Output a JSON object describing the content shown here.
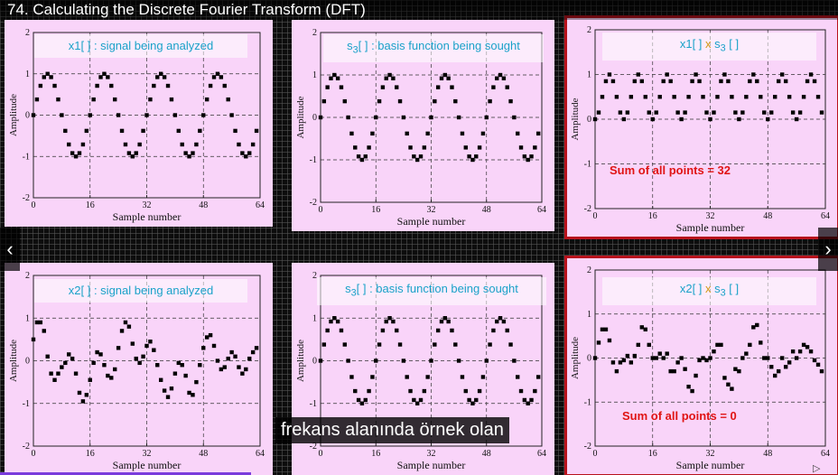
{
  "title": "74. Calculating the Discrete Fourier Transform (DFT)",
  "subtitle": "frekans alanında örnek olan",
  "nav": {
    "prev": "‹",
    "next": "›"
  },
  "progress": 0.3,
  "colors": {
    "panel_bg": "#f9d4f9",
    "caption_cyan": "#1aa2c9",
    "multiply_x": "#d39a18",
    "sum_red": "#e01414",
    "highlight": "#b8121c"
  },
  "chart_data": [
    {
      "type": "scatter",
      "caption": {
        "pre": "x1[ ] : signal being analyzed"
      },
      "xlabel": "Sample number",
      "ylabel": "Amplitude",
      "xlim": [
        0,
        64
      ],
      "ylim": [
        -2,
        2
      ],
      "xticks": [
        "0",
        "16",
        "32",
        "48",
        "64"
      ],
      "yticks": [
        "-2",
        "-1",
        "0",
        "1",
        "2"
      ],
      "grid": "dashed",
      "x": [
        0,
        1,
        2,
        3,
        4,
        5,
        6,
        7,
        8,
        9,
        10,
        11,
        12,
        13,
        14,
        15,
        16,
        17,
        18,
        19,
        20,
        21,
        22,
        23,
        24,
        25,
        26,
        27,
        28,
        29,
        30,
        31,
        32,
        33,
        34,
        35,
        36,
        37,
        38,
        39,
        40,
        41,
        42,
        43,
        44,
        45,
        46,
        47,
        48,
        49,
        50,
        51,
        52,
        53,
        54,
        55,
        56,
        57,
        58,
        59,
        60,
        61,
        62,
        63
      ],
      "y": [
        0,
        0.38,
        0.71,
        0.92,
        1,
        0.92,
        0.71,
        0.38,
        0,
        -0.38,
        -0.71,
        -0.92,
        -1,
        -0.92,
        -0.71,
        -0.38,
        0,
        0.38,
        0.71,
        0.92,
        1,
        0.92,
        0.71,
        0.38,
        0,
        -0.38,
        -0.71,
        -0.92,
        -1,
        -0.92,
        -0.71,
        -0.38,
        0,
        0.38,
        0.71,
        0.92,
        1,
        0.92,
        0.71,
        0.38,
        0,
        -0.38,
        -0.71,
        -0.92,
        -1,
        -0.92,
        -0.71,
        -0.38,
        0,
        0.38,
        0.71,
        0.92,
        1,
        0.92,
        0.71,
        0.38,
        0,
        -0.38,
        -0.71,
        -0.92,
        -1,
        -0.92,
        -0.71,
        -0.38
      ]
    },
    {
      "type": "scatter",
      "caption": {
        "pre": "s",
        "sub": "3",
        "post": "[ ] : basis function being sought"
      },
      "xlabel": "Sample number",
      "ylabel": "Amplitude",
      "xlim": [
        0,
        64
      ],
      "ylim": [
        -2,
        2
      ],
      "xticks": [
        "0",
        "16",
        "32",
        "48",
        "64"
      ],
      "yticks": [
        "-2",
        "-1",
        "0",
        "1",
        "2"
      ],
      "grid": "dashed",
      "x": [
        0,
        1,
        2,
        3,
        4,
        5,
        6,
        7,
        8,
        9,
        10,
        11,
        12,
        13,
        14,
        15,
        16,
        17,
        18,
        19,
        20,
        21,
        22,
        23,
        24,
        25,
        26,
        27,
        28,
        29,
        30,
        31,
        32,
        33,
        34,
        35,
        36,
        37,
        38,
        39,
        40,
        41,
        42,
        43,
        44,
        45,
        46,
        47,
        48,
        49,
        50,
        51,
        52,
        53,
        54,
        55,
        56,
        57,
        58,
        59,
        60,
        61,
        62,
        63
      ],
      "y": [
        0,
        0.38,
        0.71,
        0.92,
        1,
        0.92,
        0.71,
        0.38,
        0,
        -0.38,
        -0.71,
        -0.92,
        -1,
        -0.92,
        -0.71,
        -0.38,
        0,
        0.38,
        0.71,
        0.92,
        1,
        0.92,
        0.71,
        0.38,
        0,
        -0.38,
        -0.71,
        -0.92,
        -1,
        -0.92,
        -0.71,
        -0.38,
        0,
        0.38,
        0.71,
        0.92,
        1,
        0.92,
        0.71,
        0.38,
        0,
        -0.38,
        -0.71,
        -0.92,
        -1,
        -0.92,
        -0.71,
        -0.38,
        0,
        0.38,
        0.71,
        0.92,
        1,
        0.92,
        0.71,
        0.38,
        0,
        -0.38,
        -0.71,
        -0.92,
        -1,
        -0.92,
        -0.71,
        -0.38
      ]
    },
    {
      "type": "scatter",
      "caption": {
        "pre": "x1[ ] ",
        "mul": "x",
        "post2": " s",
        "sub2": "3",
        "post3": " [ ]"
      },
      "sum_text": "Sum of all points  = 32",
      "xlabel": "Sample number",
      "ylabel": "Amplitude",
      "xlim": [
        0,
        64
      ],
      "ylim": [
        -2,
        2
      ],
      "xticks": [
        "0",
        "16",
        "32",
        "48",
        "64"
      ],
      "yticks": [
        "-2",
        "-1",
        "0",
        "1",
        "2"
      ],
      "grid": "dashed",
      "x": [
        0,
        1,
        2,
        3,
        4,
        5,
        6,
        7,
        8,
        9,
        10,
        11,
        12,
        13,
        14,
        15,
        16,
        17,
        18,
        19,
        20,
        21,
        22,
        23,
        24,
        25,
        26,
        27,
        28,
        29,
        30,
        31,
        32,
        33,
        34,
        35,
        36,
        37,
        38,
        39,
        40,
        41,
        42,
        43,
        44,
        45,
        46,
        47,
        48,
        49,
        50,
        51,
        52,
        53,
        54,
        55,
        56,
        57,
        58,
        59,
        60,
        61,
        62,
        63
      ],
      "y": [
        0,
        0.15,
        0.5,
        0.85,
        1,
        0.85,
        0.5,
        0.15,
        0,
        0.15,
        0.5,
        0.85,
        1,
        0.85,
        0.5,
        0.15,
        0,
        0.15,
        0.5,
        0.85,
        1,
        0.85,
        0.5,
        0.15,
        0,
        0.15,
        0.5,
        0.85,
        1,
        0.85,
        0.5,
        0.15,
        0,
        0.15,
        0.5,
        0.85,
        1,
        0.85,
        0.5,
        0.15,
        0,
        0.15,
        0.5,
        0.85,
        1,
        0.85,
        0.5,
        0.15,
        0,
        0.15,
        0.5,
        0.85,
        1,
        0.85,
        0.5,
        0.15,
        0,
        0.15,
        0.5,
        0.85,
        1,
        0.85,
        0.5,
        0.15
      ]
    },
    {
      "type": "scatter",
      "caption": {
        "pre": "x2[ ] : signal being analyzed"
      },
      "xlabel": "Sample number",
      "ylabel": "Amplitude",
      "xlim": [
        0,
        64
      ],
      "ylim": [
        -2,
        2
      ],
      "xticks": [
        "0",
        "16",
        "32",
        "48",
        "64"
      ],
      "yticks": [
        "-2",
        "-1",
        "0",
        "1",
        "2"
      ],
      "grid": "dashed",
      "x": [
        0,
        1,
        2,
        3,
        4,
        5,
        6,
        7,
        8,
        9,
        10,
        11,
        12,
        13,
        14,
        15,
        16,
        17,
        18,
        19,
        20,
        21,
        22,
        23,
        24,
        25,
        26,
        27,
        28,
        29,
        30,
        31,
        32,
        33,
        34,
        35,
        36,
        37,
        38,
        39,
        40,
        41,
        42,
        43,
        44,
        45,
        46,
        47,
        48,
        49,
        50,
        51,
        52,
        53,
        54,
        55,
        56,
        57,
        58,
        59,
        60,
        61,
        62,
        63
      ],
      "y": [
        0.5,
        0.9,
        0.9,
        0.7,
        0.1,
        -0.3,
        -0.45,
        -0.3,
        -0.15,
        -0.05,
        0.15,
        0.05,
        -0.3,
        -0.75,
        -0.95,
        -0.8,
        -0.45,
        -0.05,
        0.2,
        0.15,
        -0.1,
        -0.35,
        -0.4,
        -0.2,
        0.3,
        0.7,
        0.9,
        0.8,
        0.4,
        0.05,
        -0.05,
        0.1,
        0.35,
        0.45,
        0.25,
        -0.1,
        -0.45,
        -0.7,
        -0.85,
        -0.65,
        -0.3,
        -0.05,
        -0.1,
        -0.35,
        -0.75,
        -0.8,
        -0.5,
        -0.1,
        0.3,
        0.55,
        0.6,
        0.35,
        0,
        -0.2,
        -0.15,
        0.05,
        0.2,
        0.1,
        -0.15,
        -0.3,
        -0.2,
        0.05,
        0.2,
        0.3
      ]
    },
    {
      "type": "scatter",
      "caption": {
        "pre": "s",
        "sub": "3",
        "post": "[ ] : basis function being sought"
      },
      "xlabel": "Sample number",
      "ylabel": "Amplitude",
      "xlim": [
        0,
        64
      ],
      "ylim": [
        -2,
        2
      ],
      "xticks": [
        "0",
        "16",
        "32",
        "48",
        "64"
      ],
      "yticks": [
        "-2",
        "-1",
        "0",
        "1",
        "2"
      ],
      "grid": "dashed",
      "x": [
        0,
        1,
        2,
        3,
        4,
        5,
        6,
        7,
        8,
        9,
        10,
        11,
        12,
        13,
        14,
        15,
        16,
        17,
        18,
        19,
        20,
        21,
        22,
        23,
        24,
        25,
        26,
        27,
        28,
        29,
        30,
        31,
        32,
        33,
        34,
        35,
        36,
        37,
        38,
        39,
        40,
        41,
        42,
        43,
        44,
        45,
        46,
        47,
        48,
        49,
        50,
        51,
        52,
        53,
        54,
        55,
        56,
        57,
        58,
        59,
        60,
        61,
        62,
        63
      ],
      "y": [
        0,
        0.38,
        0.71,
        0.92,
        1,
        0.92,
        0.71,
        0.38,
        0,
        -0.38,
        -0.71,
        -0.92,
        -1,
        -0.92,
        -0.71,
        -0.38,
        0,
        0.38,
        0.71,
        0.92,
        1,
        0.92,
        0.71,
        0.38,
        0,
        -0.38,
        -0.71,
        -0.92,
        -1,
        -0.92,
        -0.71,
        -0.38,
        0,
        0.38,
        0.71,
        0.92,
        1,
        0.92,
        0.71,
        0.38,
        0,
        -0.38,
        -0.71,
        -0.92,
        -1,
        -0.92,
        -0.71,
        -0.38,
        0,
        0.38,
        0.71,
        0.92,
        1,
        0.92,
        0.71,
        0.38,
        0,
        -0.38,
        -0.71,
        -0.92,
        -1,
        -0.92,
        -0.71,
        -0.38
      ]
    },
    {
      "type": "scatter",
      "caption": {
        "pre": "x2[ ] ",
        "mul": "x",
        "post2": " s",
        "sub2": "3",
        "post3": " [ ]"
      },
      "sum_text": "Sum of all points  = 0",
      "xlabel": "Sample number",
      "ylabel": "Amplitude",
      "xlim": [
        0,
        64
      ],
      "ylim": [
        -2,
        2
      ],
      "xticks": [
        "0",
        "16",
        "32",
        "48",
        "64"
      ],
      "yticks": [
        "-2",
        "-1",
        "0",
        "1",
        "2"
      ],
      "grid": "dashed",
      "x": [
        0,
        1,
        2,
        3,
        4,
        5,
        6,
        7,
        8,
        9,
        10,
        11,
        12,
        13,
        14,
        15,
        16,
        17,
        18,
        19,
        20,
        21,
        22,
        23,
        24,
        25,
        26,
        27,
        28,
        29,
        30,
        31,
        32,
        33,
        34,
        35,
        36,
        37,
        38,
        39,
        40,
        41,
        42,
        43,
        44,
        45,
        46,
        47,
        48,
        49,
        50,
        51,
        52,
        53,
        54,
        55,
        56,
        57,
        58,
        59,
        60,
        61,
        62,
        63
      ],
      "y": [
        0,
        0.35,
        0.65,
        0.65,
        0.4,
        -0.1,
        -0.3,
        -0.1,
        -0.05,
        0.05,
        -0.1,
        0.05,
        0.3,
        0.7,
        0.65,
        0.3,
        0,
        0,
        0.1,
        0,
        0.1,
        -0.3,
        -0.3,
        -0.1,
        0,
        -0.25,
        -0.65,
        -0.75,
        -0.4,
        -0.05,
        0,
        -0.05,
        0,
        0.15,
        0.3,
        0.3,
        -0.45,
        -0.6,
        -0.7,
        -0.25,
        -0.3,
        0,
        0.1,
        0.3,
        0.7,
        0.75,
        0.35,
        0,
        0,
        -0.2,
        -0.4,
        -0.3,
        0,
        -0.2,
        -0.1,
        0.15,
        0,
        0.15,
        0.3,
        0.25,
        0.15,
        -0.05,
        -0.15,
        -0.3
      ]
    }
  ]
}
